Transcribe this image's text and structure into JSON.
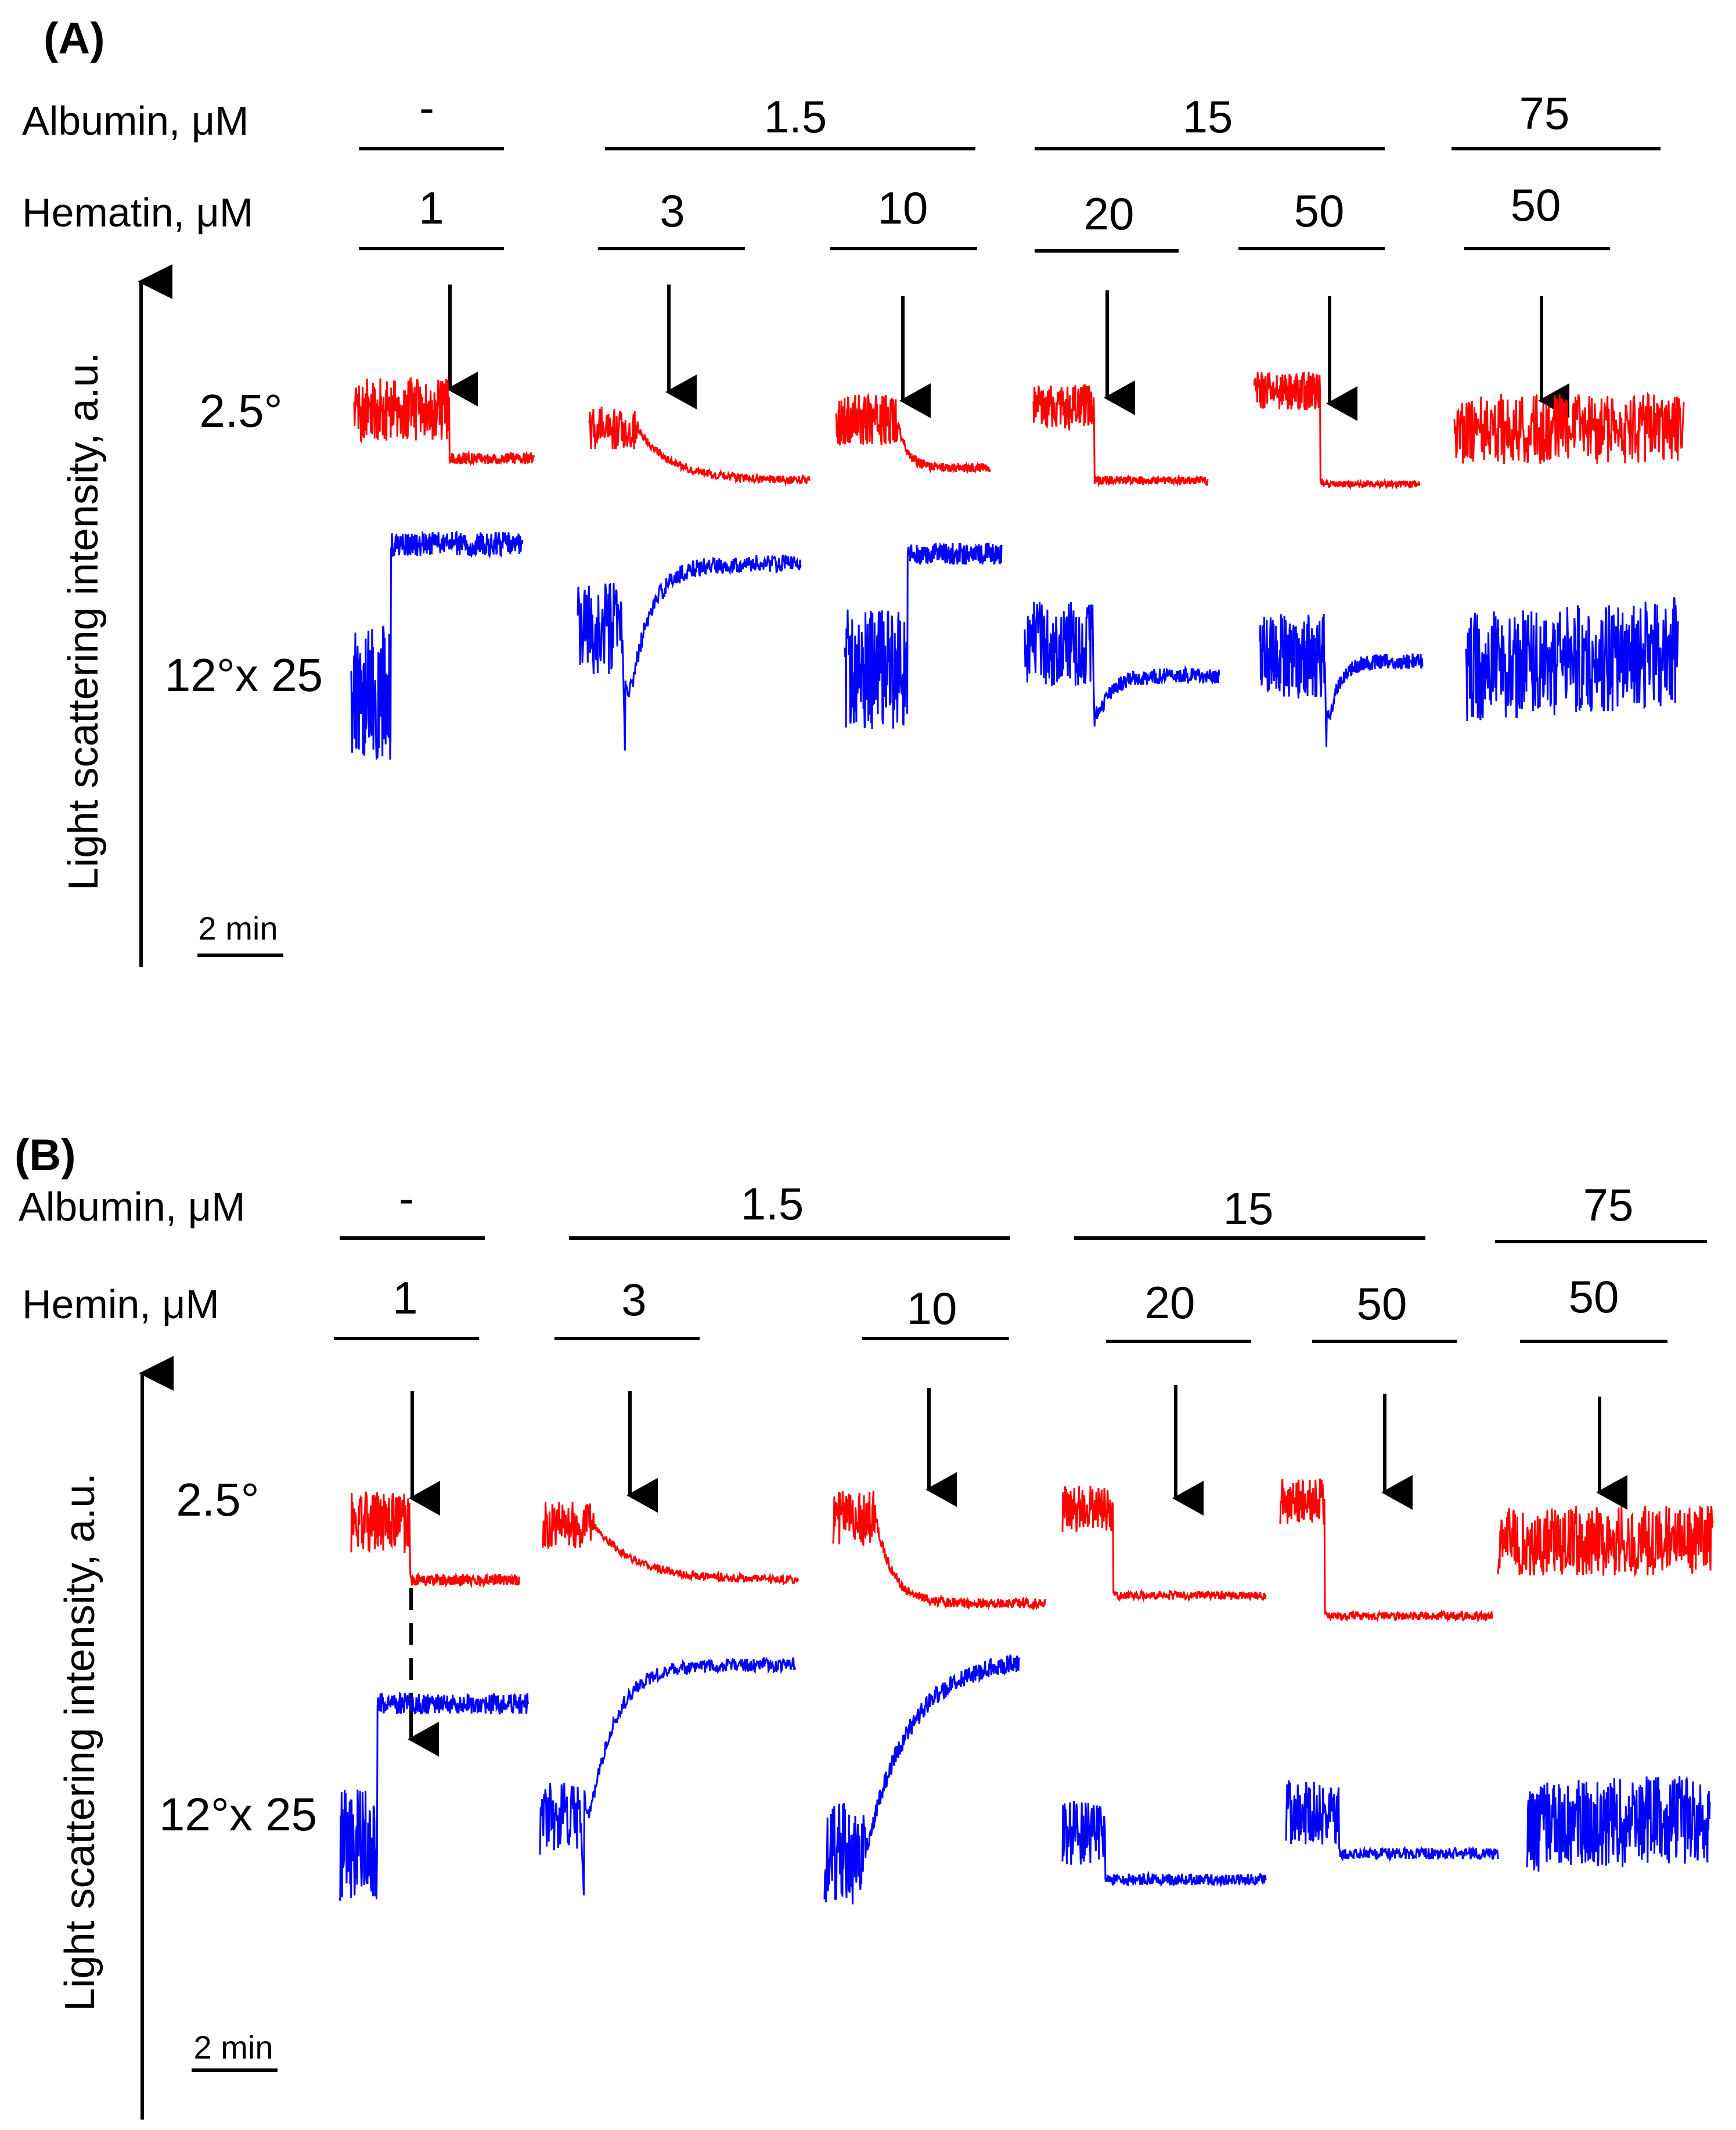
{
  "colors": {
    "angle_2_5": "#ff0000",
    "angle_12": "#0000ff",
    "annotation": "#000000"
  },
  "chart_data": [
    {
      "type": "line",
      "panel": "(A)",
      "row_labels": {
        "albumin": "Albumin, μM",
        "heme": "Hematin, μM"
      },
      "ylabel": "Light scattering intensity, a.u.",
      "scale_bar": "2 min",
      "trace_labels": [
        "2.5°",
        "12°x 25"
      ],
      "albumin_groups": [
        "-",
        "1.5",
        "15",
        "75"
      ],
      "heme_values": [
        "1",
        "3",
        "10",
        "20",
        "50",
        "50"
      ],
      "series": [
        {
          "name": "2.5°",
          "traces": [
            {
              "before": 0.7,
              "after": 0.32,
              "kind": "step",
              "noise": 0.5
            },
            {
              "before": 0.55,
              "after": 0.15,
              "kind": "decay",
              "noise": 0.35
            },
            {
              "before": 0.62,
              "after": 0.25,
              "kind": "fastdecay",
              "noise": 0.4
            },
            {
              "before": 0.72,
              "after": 0.15,
              "kind": "step",
              "noise": 0.35
            },
            {
              "before": 0.85,
              "after": 0.12,
              "kind": "step",
              "noise": 0.3
            },
            {
              "before": 0.55,
              "after": 0.55,
              "kind": "flat",
              "noise": 0.55
            }
          ]
        },
        {
          "name": "12°x 25",
          "traces": [
            {
              "before": 0.35,
              "after": 0.96,
              "kind": "step",
              "noise": 0.55
            },
            {
              "before": 0.6,
              "after": 0.88,
              "dip": 0.05,
              "kind": "dip",
              "noise": 0.4
            },
            {
              "before": 0.45,
              "after": 0.92,
              "kind": "step",
              "noise": 0.5
            },
            {
              "before": 0.55,
              "after": 0.42,
              "dip": 0.18,
              "kind": "dip",
              "noise": 0.35
            },
            {
              "before": 0.5,
              "after": 0.48,
              "dip": 0.12,
              "kind": "dip",
              "noise": 0.35
            },
            {
              "before": 0.45,
              "after": 0.52,
              "kind": "flat",
              "noise": 0.45
            }
          ]
        }
      ]
    },
    {
      "type": "line",
      "panel": "(B)",
      "row_labels": {
        "albumin": "Albumin, μM",
        "heme": "Hemin, μM"
      },
      "ylabel": "Light scattering intensity, a.u.",
      "scale_bar": "2 min",
      "trace_labels": [
        "2.5°",
        "12°x 25"
      ],
      "albumin_groups": [
        "-",
        "1.5",
        "15",
        "75"
      ],
      "heme_values": [
        "1",
        "3",
        "10",
        "20",
        "50",
        "50"
      ],
      "series": [
        {
          "name": "2.5°",
          "traces": [
            {
              "before": 0.72,
              "after": 0.35,
              "kind": "step",
              "noise": 0.4
            },
            {
              "before": 0.7,
              "after": 0.35,
              "kind": "decay",
              "noise": 0.3
            },
            {
              "before": 0.75,
              "after": 0.2,
              "kind": "fastdecay",
              "noise": 0.35
            },
            {
              "before": 0.8,
              "after": 0.25,
              "kind": "step",
              "noise": 0.3
            },
            {
              "before": 0.85,
              "after": 0.12,
              "kind": "step",
              "noise": 0.3
            },
            {
              "before": 0.6,
              "after": 0.6,
              "kind": "flat",
              "noise": 0.45
            }
          ]
        },
        {
          "name": "12°x 25",
          "traces": [
            {
              "before": 0.25,
              "after": 0.8,
              "kind": "step",
              "noise": 0.45
            },
            {
              "before": 0.35,
              "after": 0.95,
              "dip": 0.05,
              "kind": "dip",
              "noise": 0.3
            },
            {
              "before": 0.22,
              "after": 0.98,
              "kind": "rise",
              "noise": 0.4
            },
            {
              "before": 0.3,
              "after": 0.12,
              "kind": "step",
              "noise": 0.25
            },
            {
              "before": 0.38,
              "after": 0.22,
              "kind": "step",
              "noise": 0.25
            },
            {
              "before": 0.32,
              "after": 0.36,
              "kind": "flat",
              "noise": 0.35
            }
          ]
        }
      ]
    }
  ]
}
